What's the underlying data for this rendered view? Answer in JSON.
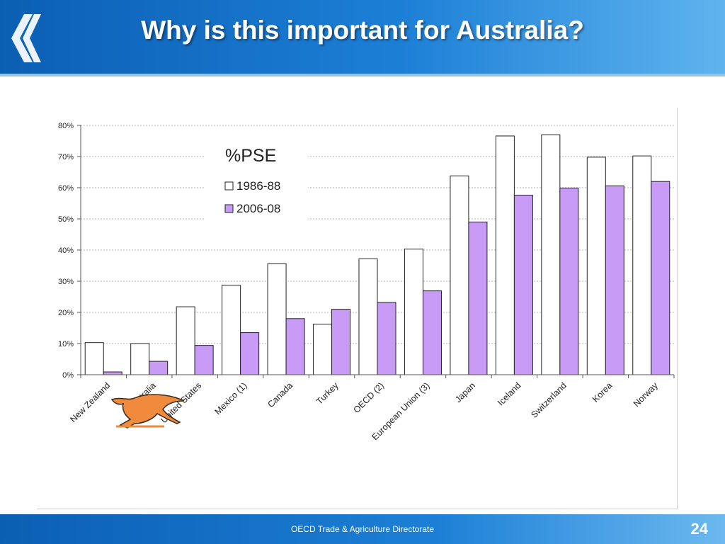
{
  "slide": {
    "title": "Why is this important for Australia?",
    "footer": "OECD Trade & Agriculture Directorate",
    "page_number": "24"
  },
  "colors": {
    "header": "#1c7fd6",
    "series_1986": "#ffffff",
    "series_2006": "#c89cf6",
    "bar_outline": "#222222"
  },
  "icons": {
    "logo": "double-chevron-left-icon",
    "kangaroo": "kangaroo-icon"
  },
  "chart_data": {
    "type": "bar",
    "legend_title": "%PSE",
    "categories": [
      "New Zealand",
      "Australia",
      "United States",
      "Mexico (1)",
      "Canada",
      "Turkey",
      "OECD (2)",
      "European Union (3)",
      "Japan",
      "Iceland",
      "Switzerland",
      "Korea",
      "Norway"
    ],
    "series": [
      {
        "name": "1986-88",
        "values": [
          10.3,
          10.0,
          21.8,
          28.7,
          35.6,
          16.2,
          37.2,
          40.3,
          63.8,
          76.6,
          77.0,
          69.8,
          70.2
        ]
      },
      {
        "name": "2006-08",
        "values": [
          0.9,
          4.3,
          9.4,
          13.5,
          18.0,
          21.0,
          23.2,
          26.9,
          49.0,
          57.6,
          59.9,
          60.6,
          62.0
        ]
      }
    ],
    "yticks": [
      "0%",
      "10%",
      "20%",
      "30%",
      "40%",
      "50%",
      "60%",
      "70%",
      "80%"
    ],
    "ylim": [
      0,
      80
    ],
    "grid": true,
    "legend_position": "top-left"
  }
}
